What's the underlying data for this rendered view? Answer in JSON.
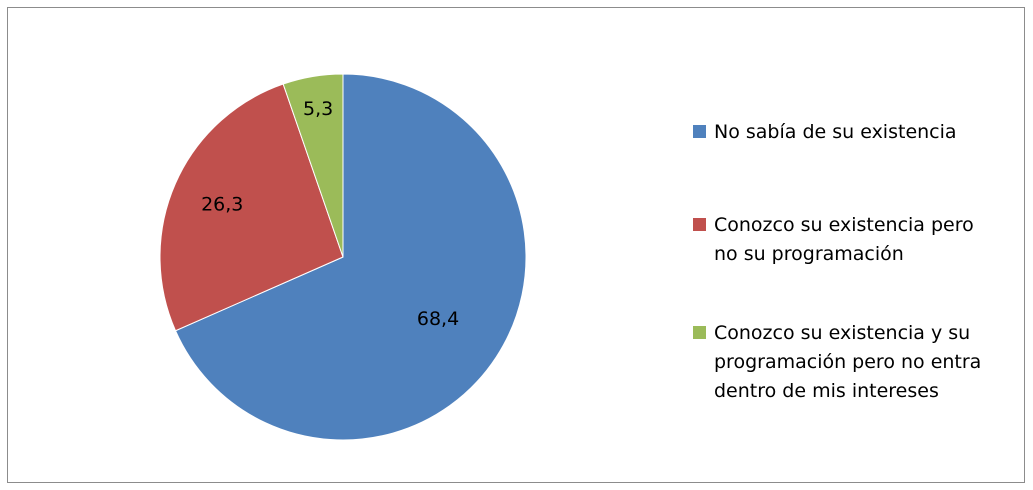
{
  "chart_data": {
    "type": "pie",
    "title": "",
    "legend_position": "right",
    "slices": [
      {
        "label": "No sabía de su existencia",
        "value": 68.4,
        "value_label": "68,4",
        "color": "#4F81BD"
      },
      {
        "label": "Conozco su existencia pero\nno su programación",
        "value": 26.3,
        "value_label": "26,3",
        "color": "#C0504D"
      },
      {
        "label": "Conozco su existencia y su\nprogramación pero no entra\ndentro de mis intereses",
        "value": 5.3,
        "value_label": "5,3",
        "color": "#9BBB59"
      }
    ]
  }
}
